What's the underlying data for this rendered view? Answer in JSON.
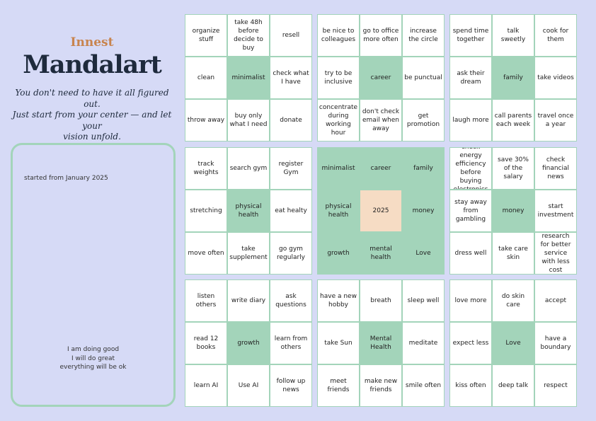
{
  "brand": {
    "subtitle": "Innest",
    "title": "Mandalart",
    "tagline": "You don't need to have it all figured out.\nJust start from your center — and let your\nvision unfold."
  },
  "notes": {
    "started": "started from January 2025",
    "affirmations": "I am doing good\nI will do great\neverything will be ok"
  },
  "colors": {
    "background": "#d6daf6",
    "green": "#a3d4ba",
    "peach": "#f6dcc4",
    "cell": "#ffffff"
  },
  "grid": {
    "blocks": [
      {
        "name": "minimalist",
        "cells": [
          "organize stuff",
          "take 48h before decide to buy",
          "resell",
          "clean",
          "minimalist",
          "check what I have",
          "throw away",
          "buy only what I need",
          "donate"
        ]
      },
      {
        "name": "career",
        "cells": [
          "be nice to colleagues",
          "go to office more often",
          "increase the circle",
          "try to be inclusive",
          "career",
          "be punctual",
          "concentrate during working hour",
          "don't check email when away",
          "get promotion"
        ]
      },
      {
        "name": "family",
        "cells": [
          "spend time together",
          "talk sweetly",
          "cook for them",
          "ask their dream",
          "family",
          "take videos",
          "laugh more",
          "call parents each week",
          "travel once a year"
        ]
      },
      {
        "name": "physical-health",
        "cells": [
          "track weights",
          "search gym",
          "register Gym",
          "stretching",
          "physical health",
          "eat healty",
          "move often",
          "take supplement",
          "go gym regularly"
        ]
      },
      {
        "name": "center",
        "cells": [
          "minimalist",
          "career",
          "family",
          "physical health",
          "2025",
          "money",
          "growth",
          "mental health",
          "Love"
        ]
      },
      {
        "name": "money",
        "cells": [
          "check energy efficiency before buying electronics",
          "save 30% of the salary",
          "check financial news",
          "stay away from gambling",
          "money",
          "start investment",
          "dress well",
          "take care skin",
          "research for better service with less cost"
        ]
      },
      {
        "name": "growth",
        "cells": [
          "listen others",
          "write diary",
          "ask questions",
          "read 12 books",
          "growth",
          "learn from others",
          "learn AI",
          "Use AI",
          "follow up news"
        ]
      },
      {
        "name": "mental-health",
        "cells": [
          "have a new hobby",
          "breath",
          "sleep well",
          "take Sun",
          "Mental Health",
          "meditate",
          "meet friends",
          "make new friends",
          "smile often"
        ]
      },
      {
        "name": "love",
        "cells": [
          "love more",
          "do skin care",
          "accept",
          "expect less",
          "Love",
          "have a boundary",
          "kiss often",
          "deep talk",
          "respect"
        ]
      }
    ]
  }
}
